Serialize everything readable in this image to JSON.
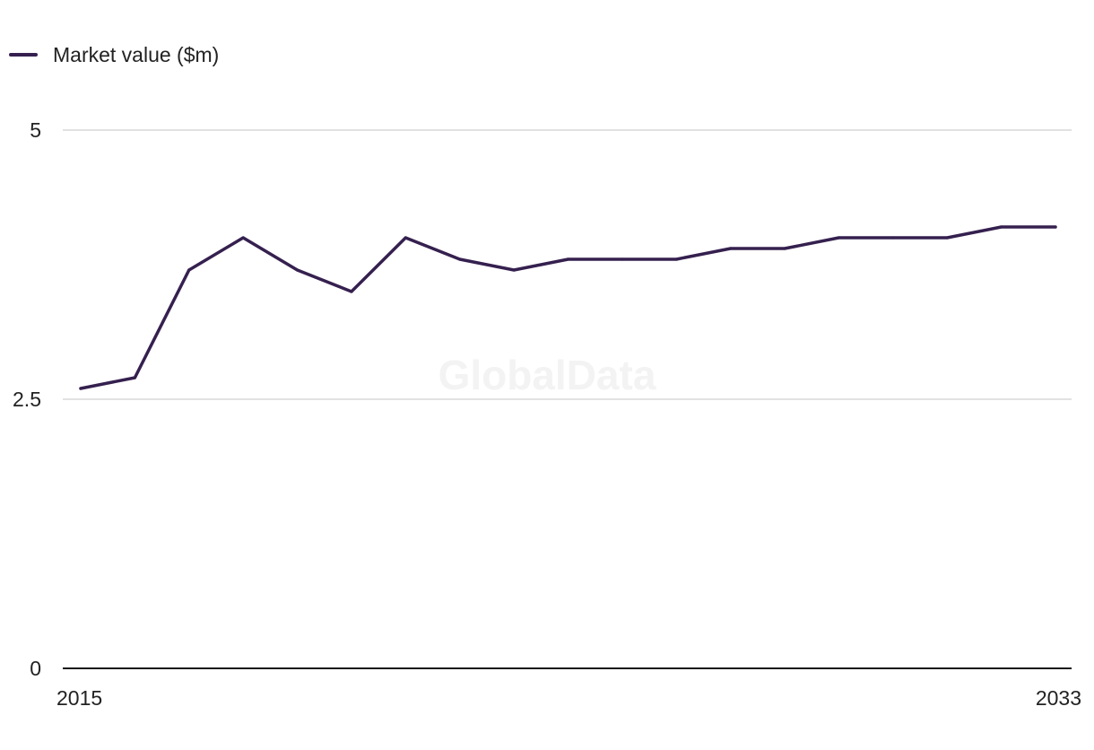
{
  "watermark": "GlobalData",
  "colors": {
    "series": "#35204f",
    "grid": "#d9d9d9",
    "axis": "#1a1a1a",
    "text": "#222222"
  },
  "chart_data": {
    "type": "line",
    "title": "",
    "xlabel": "",
    "ylabel": "",
    "legend": "top-left",
    "grid": true,
    "x": [
      2015,
      2016,
      2017,
      2018,
      2019,
      2020,
      2021,
      2022,
      2023,
      2024,
      2025,
      2026,
      2027,
      2028,
      2029,
      2030,
      2031,
      2032,
      2033
    ],
    "series": [
      {
        "name": "Market value ($m)",
        "values": [
          2.6,
          2.7,
          3.7,
          4.0,
          3.7,
          3.5,
          4.0,
          3.8,
          3.7,
          3.8,
          3.8,
          3.8,
          3.9,
          3.9,
          4.0,
          4.0,
          4.0,
          4.1,
          4.1
        ]
      }
    ],
    "ylim": [
      0,
      5
    ],
    "y_ticks": [
      {
        "value": 0,
        "label": "0"
      },
      {
        "value": 2.5,
        "label": "2.5"
      },
      {
        "value": 5,
        "label": "5"
      }
    ],
    "x_ticks": [
      {
        "value": 2015,
        "label": "2015"
      },
      {
        "value": 2033,
        "label": "2033"
      }
    ]
  }
}
